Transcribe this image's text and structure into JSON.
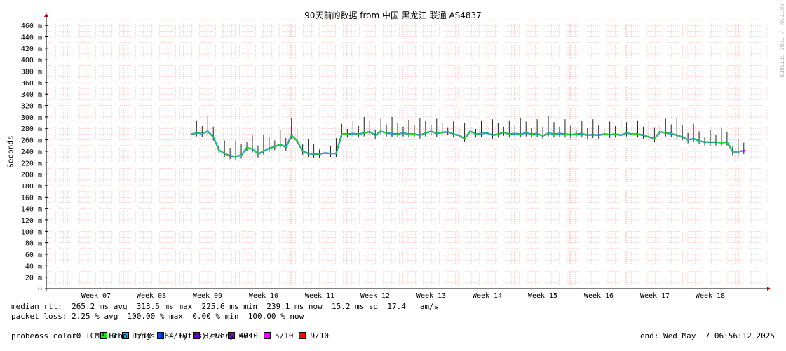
{
  "chart_data": {
    "type": "line",
    "title": "90天前的数据 from 中国 黑龙江 联通 AS4837",
    "ylabel": "Seconds",
    "y_unit": "m",
    "ylim": [
      0,
      470
    ],
    "y_ticks": [
      0,
      20,
      40,
      60,
      80,
      100,
      120,
      140,
      160,
      180,
      200,
      220,
      240,
      260,
      280,
      300,
      320,
      340,
      360,
      380,
      400,
      420,
      440,
      460
    ],
    "y_tick_labels": [
      "0",
      "20 m",
      "40 m",
      "60 m",
      "80 m",
      "100 m",
      "120 m",
      "140 m",
      "160 m",
      "180 m",
      "200 m",
      "220 m",
      "240 m",
      "260 m",
      "280 m",
      "300 m",
      "320 m",
      "340 m",
      "360 m",
      "380 m",
      "400 m",
      "420 m",
      "440 m",
      "460 m"
    ],
    "x_ticks": [
      "Week 07",
      "Week 08",
      "Week 09",
      "Week 10",
      "Week 11",
      "Week 12",
      "Week 13",
      "Week 14",
      "Week 15",
      "Week 16",
      "Week 17",
      "Week 18"
    ],
    "grid": true,
    "series": [
      {
        "name": "median rtt",
        "x_week": [
          8.7,
          8.8,
          8.9,
          9.0,
          9.1,
          9.2,
          9.3,
          9.4,
          9.5,
          9.6,
          9.7,
          9.8,
          9.9,
          10.0,
          10.1,
          10.2,
          10.3,
          10.4,
          10.5,
          10.6,
          10.7,
          10.8,
          10.9,
          11.0,
          11.1,
          11.2,
          11.3,
          11.4,
          11.5,
          11.6,
          11.7,
          11.8,
          11.9,
          12.0,
          12.1,
          12.2,
          12.3,
          12.4,
          12.5,
          12.6,
          12.7,
          12.8,
          12.9,
          13.0,
          13.1,
          13.2,
          13.3,
          13.4,
          13.5,
          13.6,
          13.7,
          13.8,
          13.9,
          14.0,
          14.1,
          14.2,
          14.3,
          14.4,
          14.5,
          14.6,
          14.7,
          14.8,
          14.9,
          15.0,
          15.1,
          15.2,
          15.3,
          15.4,
          15.5,
          15.6,
          15.7,
          15.8,
          15.9,
          16.0,
          16.1,
          16.2,
          16.3,
          16.4,
          16.5,
          16.6,
          16.7,
          16.8,
          16.9,
          17.0,
          17.1,
          17.2,
          17.3,
          17.4,
          17.5,
          17.6,
          17.7,
          17.8,
          17.9,
          18.0,
          18.1,
          18.2,
          18.3,
          18.4,
          18.5,
          18.6
        ],
        "values_ms": [
          270,
          272,
          271,
          275,
          265,
          242,
          236,
          232,
          231,
          233,
          246,
          244,
          235,
          240,
          245,
          248,
          252,
          247,
          268,
          258,
          240,
          236,
          235,
          235,
          237,
          236,
          236,
          270,
          270,
          271,
          270,
          272,
          274,
          268,
          275,
          272,
          271,
          270,
          272,
          270,
          270,
          268,
          272,
          275,
          271,
          273,
          274,
          270,
          268,
          262,
          275,
          270,
          271,
          272,
          268,
          270,
          273,
          270,
          271,
          270,
          272,
          270,
          271,
          267,
          272,
          270,
          271,
          270,
          269,
          270,
          271,
          268,
          269,
          268,
          270,
          269,
          270,
          268,
          272,
          270,
          270,
          268,
          265,
          262,
          274,
          272,
          271,
          268,
          265,
          260,
          262,
          258,
          256,
          256,
          256,
          255,
          256,
          239,
          239,
          241
        ]
      }
    ],
    "loss_series": [
      {
        "name": "0",
        "color": "#20e020"
      },
      {
        "name": "1/10",
        "color": "#00b8ff"
      },
      {
        "name": "2/10",
        "color": "#0050ff"
      },
      {
        "name": "3/10",
        "color": "#6a00ff"
      },
      {
        "name": "4/10",
        "color": "#8a00ff"
      },
      {
        "name": "5/10",
        "color": "#e000ff"
      },
      {
        "name": "9/10",
        "color": "#ff0000"
      }
    ]
  },
  "legend": {
    "rtt_row": "median rtt:  265.2 ms avg  313.5 ms max  225.6 ms min  239.1 ms now  15.2 ms sd  17.4   am/s",
    "loss_row": "packet loss: 2.25 % avg  100.00 % max  0.00 % min  100.00 % now",
    "loss_color_label": "loss color:",
    "probe_row": "probe:       10 ICMP Echo Pings (64 Bytes) every 60s",
    "end_label": "end: Wed May  7 06:56:12 2025"
  },
  "watermark": "RRDTOOL / TOBI OETIKER",
  "colors": {
    "grid": "#f0b0b0",
    "axis": "#c00000",
    "smoke": "#222222"
  }
}
